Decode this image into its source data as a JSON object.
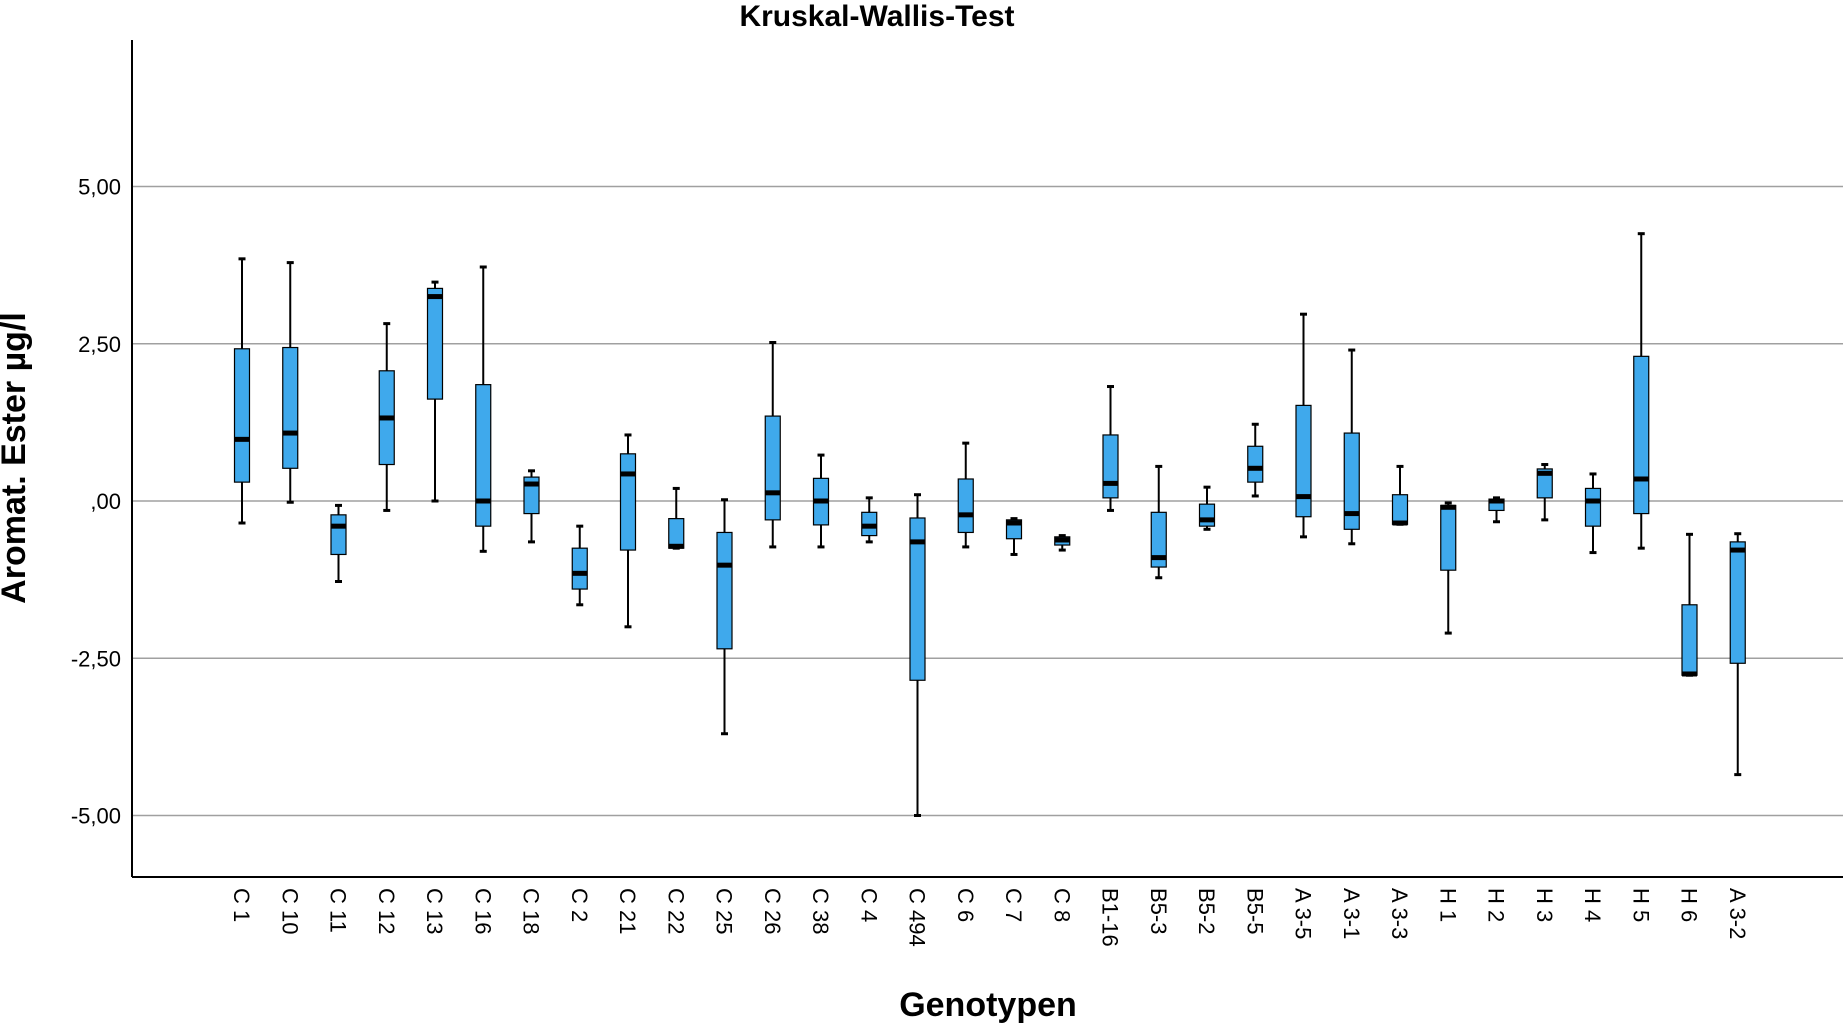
{
  "chart_data": {
    "type": "boxplot",
    "title": "Kruskal-Wallis-Test",
    "xlabel": "Genotypen",
    "ylabel": "Aromat. Ester µg/l",
    "ylim": [
      -6.0,
      7.3
    ],
    "yticks": [
      {
        "value": 5.0,
        "label": "5,00"
      },
      {
        "value": 2.5,
        "label": "2,50"
      },
      {
        "value": 0.0,
        "label": ",00"
      },
      {
        "value": -2.5,
        "label": "-2,50"
      },
      {
        "value": -5.0,
        "label": "-5,00"
      }
    ],
    "grid": true,
    "box_color": "#3fa9ec",
    "categories": [
      "C 1",
      "C 10",
      "C 11",
      "C 12",
      "C 13",
      "C 16",
      "C 18",
      "C 2",
      "C 21",
      "C 22",
      "C 25",
      "C 26",
      "C 38",
      "C 4",
      "C 494",
      "C 6",
      "C 7",
      "C 8",
      "B1-16",
      "B5-3",
      "B5-2",
      "B5-5",
      "A 3-5",
      "A 3-1",
      "A 3-3",
      "H 1",
      "H 2",
      "H 3",
      "H 4",
      "H 5",
      "H 6",
      "A 3-2"
    ],
    "boxes": [
      {
        "name": "C 1",
        "min": -0.35,
        "q1": 0.3,
        "median": 0.98,
        "q3": 2.42,
        "max": 3.85
      },
      {
        "name": "C 10",
        "min": -0.02,
        "q1": 0.52,
        "median": 1.08,
        "q3": 2.44,
        "max": 3.79
      },
      {
        "name": "C 11",
        "min": -1.28,
        "q1": -0.85,
        "median": -0.4,
        "q3": -0.22,
        "max": -0.07
      },
      {
        "name": "C 12",
        "min": -0.15,
        "q1": 0.58,
        "median": 1.32,
        "q3": 2.07,
        "max": 2.82
      },
      {
        "name": "C 13",
        "min": 0.0,
        "q1": 1.62,
        "median": 3.25,
        "q3": 3.38,
        "max": 3.48
      },
      {
        "name": "C 16",
        "min": -0.8,
        "q1": -0.4,
        "median": 0.0,
        "q3": 1.85,
        "max": 3.72
      },
      {
        "name": "C 18",
        "min": -0.65,
        "q1": -0.2,
        "median": 0.27,
        "q3": 0.38,
        "max": 0.48
      },
      {
        "name": "C 2",
        "min": -1.65,
        "q1": -1.4,
        "median": -1.15,
        "q3": -0.75,
        "max": -0.4
      },
      {
        "name": "C 21",
        "min": -2.0,
        "q1": -0.78,
        "median": 0.43,
        "q3": 0.75,
        "max": 1.05
      },
      {
        "name": "C 22",
        "min": -0.75,
        "q1": -0.75,
        "median": -0.72,
        "q3": -0.28,
        "max": 0.2
      },
      {
        "name": "C 25",
        "min": -3.7,
        "q1": -2.35,
        "median": -1.02,
        "q3": -0.5,
        "max": 0.02
      },
      {
        "name": "C 26",
        "min": -0.73,
        "q1": -0.3,
        "median": 0.13,
        "q3": 1.35,
        "max": 2.52
      },
      {
        "name": "C 38",
        "min": -0.73,
        "q1": -0.38,
        "median": 0.0,
        "q3": 0.36,
        "max": 0.73
      },
      {
        "name": "C 4",
        "min": -0.65,
        "q1": -0.55,
        "median": -0.4,
        "q3": -0.18,
        "max": 0.05
      },
      {
        "name": "C 494",
        "min": -5.0,
        "q1": -2.85,
        "median": -0.65,
        "q3": -0.27,
        "max": 0.1
      },
      {
        "name": "C 6",
        "min": -0.73,
        "q1": -0.5,
        "median": -0.22,
        "q3": 0.35,
        "max": 0.92
      },
      {
        "name": "C 7",
        "min": -0.85,
        "q1": -0.6,
        "median": -0.35,
        "q3": -0.3,
        "max": -0.28
      },
      {
        "name": "C 8",
        "min": -0.78,
        "q1": -0.7,
        "median": -0.62,
        "q3": -0.57,
        "max": -0.55
      },
      {
        "name": "B1-16",
        "min": -0.15,
        "q1": 0.05,
        "median": 0.28,
        "q3": 1.05,
        "max": 1.82
      },
      {
        "name": "B5-3",
        "min": -1.22,
        "q1": -1.05,
        "median": -0.9,
        "q3": -0.18,
        "max": 0.55
      },
      {
        "name": "B5-2",
        "min": -0.45,
        "q1": -0.4,
        "median": -0.3,
        "q3": -0.05,
        "max": 0.22
      },
      {
        "name": "B5-5",
        "min": 0.08,
        "q1": 0.3,
        "median": 0.52,
        "q3": 0.87,
        "max": 1.22
      },
      {
        "name": "A 3-5",
        "min": -0.57,
        "q1": -0.25,
        "median": 0.07,
        "q3": 1.52,
        "max": 2.97
      },
      {
        "name": "A 3-1",
        "min": -0.68,
        "q1": -0.45,
        "median": -0.2,
        "q3": 1.08,
        "max": 2.4
      },
      {
        "name": "A 3-3",
        "min": -0.37,
        "q1": -0.37,
        "median": -0.35,
        "q3": 0.1,
        "max": 0.55
      },
      {
        "name": "H 1",
        "min": -2.1,
        "q1": -1.1,
        "median": -0.1,
        "q3": -0.07,
        "max": -0.03
      },
      {
        "name": "H 2",
        "min": -0.33,
        "q1": -0.15,
        "median": 0.0,
        "q3": 0.03,
        "max": 0.05
      },
      {
        "name": "H 3",
        "min": -0.3,
        "q1": 0.05,
        "median": 0.44,
        "q3": 0.51,
        "max": 0.58
      },
      {
        "name": "H 4",
        "min": -0.82,
        "q1": -0.4,
        "median": 0.0,
        "q3": 0.2,
        "max": 0.43
      },
      {
        "name": "H 5",
        "min": -0.75,
        "q1": -0.2,
        "median": 0.35,
        "q3": 2.3,
        "max": 4.25
      },
      {
        "name": "H 6",
        "min": -2.77,
        "q1": -2.77,
        "median": -2.75,
        "q3": -1.65,
        "max": -0.53
      },
      {
        "name": "A 3-2",
        "min": -4.35,
        "q1": -2.58,
        "median": -0.78,
        "q3": -0.65,
        "max": -0.52
      }
    ]
  }
}
